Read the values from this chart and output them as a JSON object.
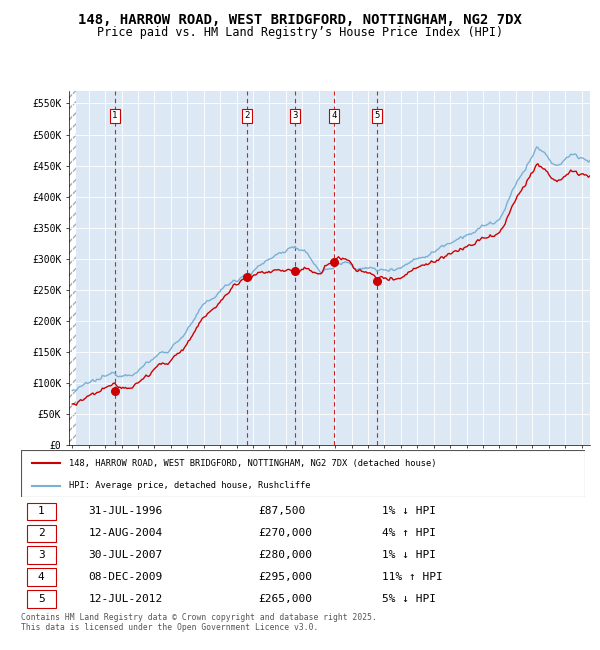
{
  "title": "148, HARROW ROAD, WEST BRIDGFORD, NOTTINGHAM, NG2 7DX",
  "subtitle": "Price paid vs. HM Land Registry’s House Price Index (HPI)",
  "background_color": "#dce9f5",
  "sale_dates": [
    1996.58,
    2004.62,
    2007.58,
    2009.92,
    2012.54
  ],
  "sale_prices": [
    87500,
    270000,
    280000,
    295000,
    265000
  ],
  "sale_labels": [
    "1",
    "2",
    "3",
    "4",
    "5"
  ],
  "legend_entries": [
    "148, HARROW ROAD, WEST BRIDGFORD, NOTTINGHAM, NG2 7DX (detached house)",
    "HPI: Average price, detached house, Rushcliffe"
  ],
  "table_rows": [
    [
      "1",
      "31-JUL-1996",
      "£87,500",
      "1% ↓ HPI"
    ],
    [
      "2",
      "12-AUG-2004",
      "£270,000",
      "4% ↑ HPI"
    ],
    [
      "3",
      "30-JUL-2007",
      "£280,000",
      "1% ↓ HPI"
    ],
    [
      "4",
      "08-DEC-2009",
      "£295,000",
      "11% ↑ HPI"
    ],
    [
      "5",
      "12-JUL-2012",
      "£265,000",
      "5% ↓ HPI"
    ]
  ],
  "footer": "Contains HM Land Registry data © Crown copyright and database right 2025.\nThis data is licensed under the Open Government Licence v3.0.",
  "red_line_color": "#cc0000",
  "blue_line_color": "#7ab0d4",
  "dashed_line_color": "#cc0000",
  "xlim": [
    1993.8,
    2025.5
  ],
  "ylim": [
    0,
    570000
  ],
  "yticks": [
    0,
    50000,
    100000,
    150000,
    200000,
    250000,
    300000,
    350000,
    400000,
    450000,
    500000,
    550000
  ],
  "ytick_labels": [
    "£0",
    "£50K",
    "£100K",
    "£150K",
    "£200K",
    "£250K",
    "£300K",
    "£350K",
    "£400K",
    "£450K",
    "£500K",
    "£550K"
  ]
}
